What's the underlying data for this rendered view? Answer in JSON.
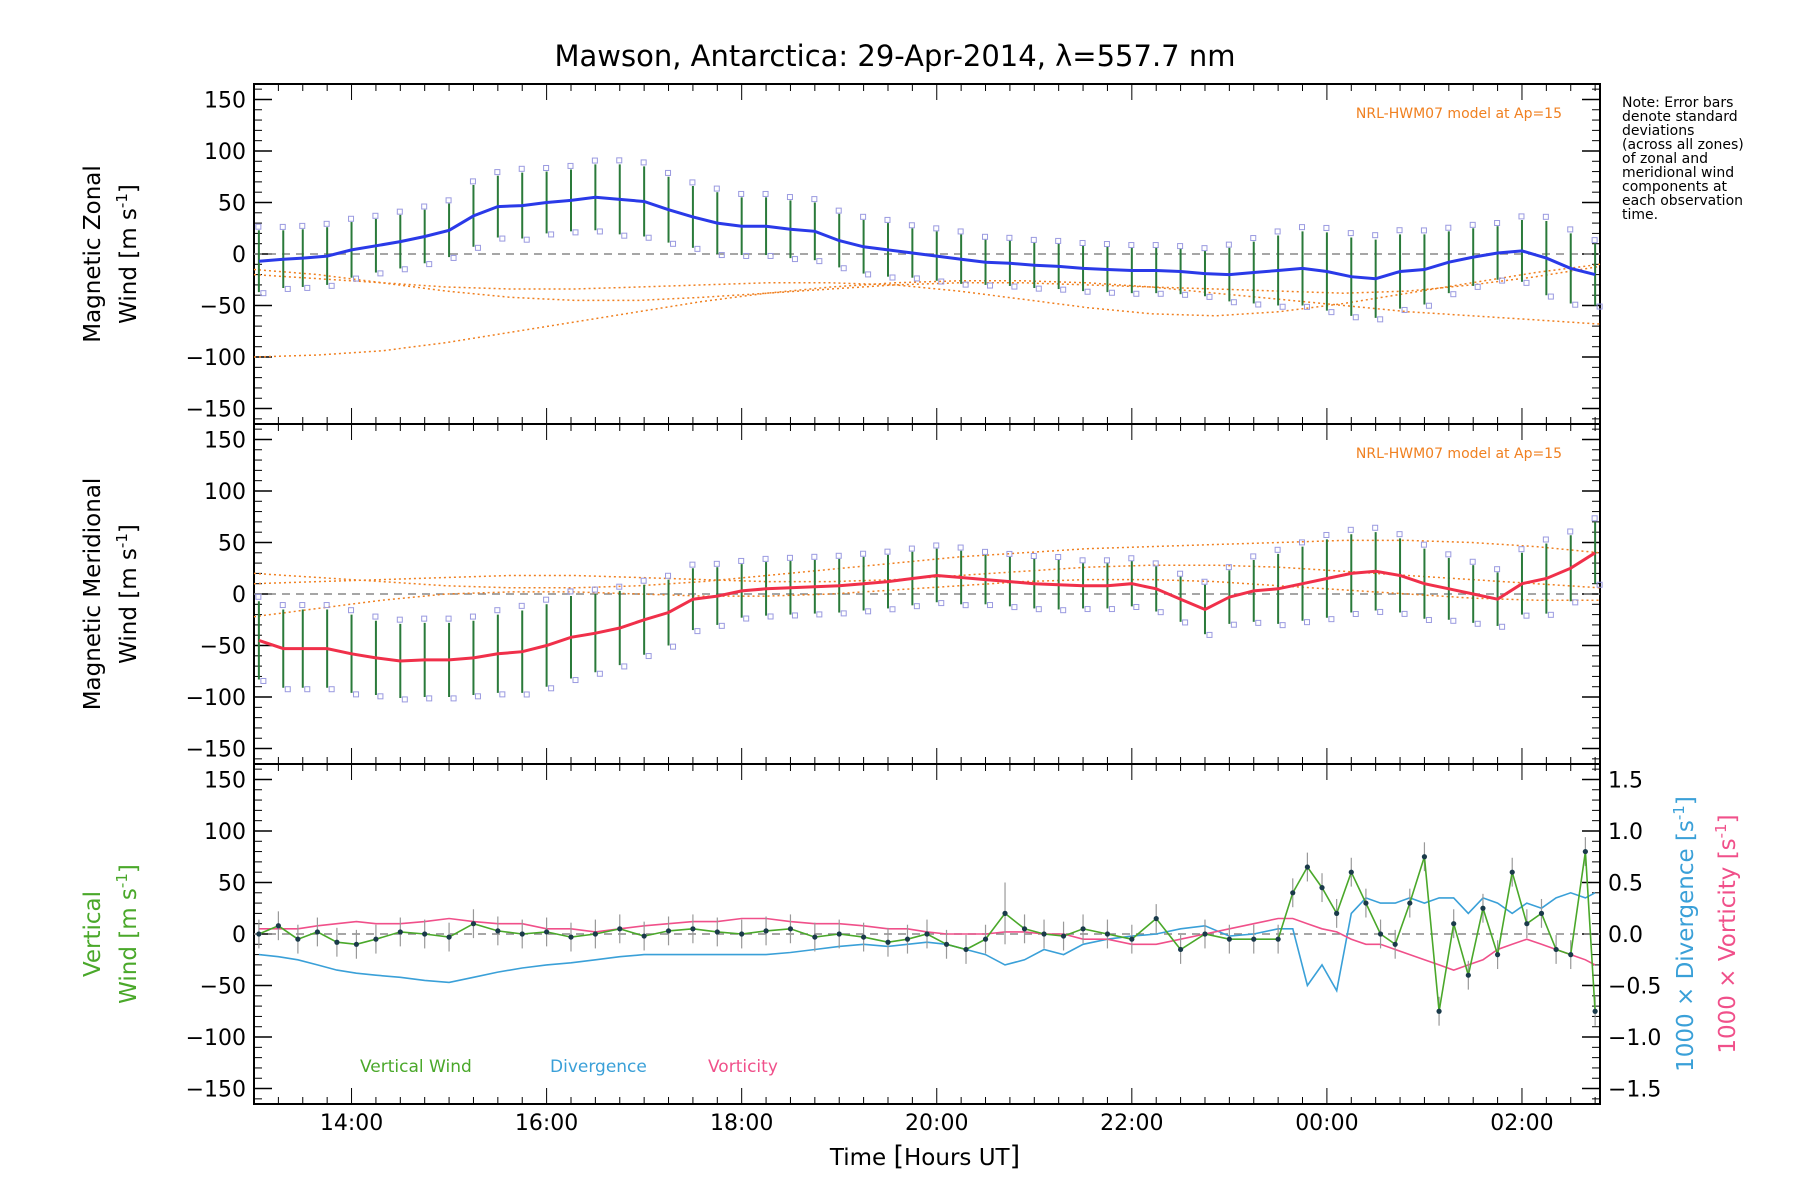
{
  "title": "Mawson, Antarctica: 29-Apr-2014, λ=557.7 nm",
  "note": [
    "Note: Error bars",
    "denote standard",
    "deviations",
    "(across all zones)",
    "of zonal and",
    "meridional wind",
    "components at",
    "each observation",
    "time."
  ],
  "model_label": "NRL-HWM07 model at Ap=15",
  "colors": {
    "zonal": "#2a3ae8",
    "zonal_light": "#3a9ee8",
    "meridional": "#f0304a",
    "vertical": "#4aa82a",
    "divergence": "#3aa0d8",
    "vorticity": "#f0508a",
    "model": "#f08020",
    "scatter": "#9a9ae0"
  },
  "chart_data": [
    {
      "type": "line",
      "name": "zonal",
      "ylabel_line1": "Magnetic Zonal",
      "ylabel_line2": "Wind [m s",
      "ylabel_sup": "-1",
      "ylabel_close": "]",
      "ylim": [
        -165,
        165
      ],
      "yticks": [
        "150",
        "100",
        "50",
        "0",
        "−50",
        "−100",
        "−150"
      ],
      "x": [
        13.05,
        13.3,
        13.5,
        13.75,
        14.0,
        14.25,
        14.5,
        14.75,
        15.0,
        15.25,
        15.5,
        15.75,
        16.0,
        16.25,
        16.5,
        16.75,
        17.0,
        17.25,
        17.5,
        17.75,
        18.0,
        18.25,
        18.5,
        18.75,
        19.0,
        19.25,
        19.5,
        19.75,
        20.0,
        20.25,
        20.5,
        20.75,
        21.0,
        21.25,
        21.5,
        21.75,
        22.0,
        22.25,
        22.5,
        22.75,
        23.0,
        23.25,
        23.5,
        23.75,
        24.0,
        24.25,
        24.5,
        24.75,
        25.0,
        25.25,
        25.5,
        25.75,
        26.0,
        26.25,
        26.5,
        26.75
      ],
      "y": [
        -7,
        -5,
        -4,
        -2,
        4,
        8,
        12,
        17,
        23,
        37,
        46,
        47,
        50,
        52,
        55,
        53,
        51,
        43,
        36,
        30,
        27,
        27,
        24,
        22,
        13,
        7,
        4,
        1,
        -2,
        -5,
        -8,
        -9,
        -11,
        -12,
        -14,
        -15,
        -16,
        -16,
        -17,
        -19,
        -20,
        -18,
        -16,
        -14,
        -17,
        -22,
        -24,
        -17,
        -15,
        -8,
        -3,
        1,
        3,
        -4,
        -14,
        -20
      ],
      "err": [
        30,
        28,
        28,
        28,
        27,
        26,
        26,
        26,
        26,
        30,
        30,
        32,
        30,
        30,
        32,
        34,
        34,
        32,
        30,
        30,
        28,
        28,
        28,
        28,
        26,
        26,
        26,
        24,
        24,
        24,
        22,
        22,
        22,
        22,
        22,
        22,
        22,
        22,
        22,
        22,
        26,
        30,
        34,
        36,
        38,
        38,
        38,
        36,
        34,
        30,
        28,
        26,
        30,
        36,
        34,
        30
      ]
    },
    {
      "type": "line",
      "name": "meridional",
      "ylabel_line1": "Magnetic Meridional",
      "ylabel_line2": "Wind [m s",
      "ylabel_sup": "-1",
      "ylabel_close": "]",
      "ylim": [
        -165,
        165
      ],
      "yticks": [
        "150",
        "100",
        "50",
        "0",
        "−50",
        "−100",
        "−150"
      ],
      "x": [
        13.05,
        13.3,
        13.5,
        13.75,
        14.0,
        14.25,
        14.5,
        14.75,
        15.0,
        15.25,
        15.5,
        15.75,
        16.0,
        16.25,
        16.5,
        16.75,
        17.0,
        17.25,
        17.5,
        17.75,
        18.0,
        18.25,
        18.5,
        18.75,
        19.0,
        19.25,
        19.5,
        19.75,
        20.0,
        20.25,
        20.5,
        20.75,
        21.0,
        21.25,
        21.5,
        21.75,
        22.0,
        22.25,
        22.5,
        22.75,
        23.0,
        23.25,
        23.5,
        23.75,
        24.0,
        24.25,
        24.5,
        24.75,
        25.0,
        25.25,
        25.5,
        25.75,
        26.0,
        26.25,
        26.5,
        26.75
      ],
      "y": [
        -45,
        -53,
        -53,
        -53,
        -58,
        -62,
        -65,
        -64,
        -64,
        -62,
        -58,
        -56,
        -50,
        -42,
        -38,
        -33,
        -25,
        -18,
        -5,
        -2,
        3,
        5,
        6,
        7,
        8,
        10,
        12,
        15,
        18,
        16,
        14,
        12,
        10,
        9,
        8,
        8,
        10,
        5,
        -5,
        -15,
        -3,
        3,
        5,
        10,
        15,
        20,
        22,
        18,
        10,
        5,
        0,
        -5,
        10,
        15,
        25,
        40
      ],
      "err": [
        38,
        38,
        38,
        38,
        38,
        36,
        36,
        36,
        36,
        36,
        38,
        40,
        40,
        40,
        38,
        36,
        34,
        32,
        30,
        28,
        26,
        26,
        26,
        26,
        26,
        26,
        26,
        26,
        26,
        26,
        24,
        24,
        24,
        24,
        22,
        22,
        22,
        22,
        22,
        24,
        26,
        30,
        34,
        36,
        38,
        38,
        38,
        36,
        34,
        30,
        28,
        26,
        30,
        34,
        32,
        30
      ]
    },
    {
      "type": "line",
      "name": "vertical",
      "ylabel_line1": "Vertical",
      "ylabel_line2": "Wind [m s",
      "ylabel_sup": "-1",
      "ylabel_close": "]",
      "ylim": [
        -165,
        165
      ],
      "yticks": [
        "150",
        "100",
        "50",
        "0",
        "−50",
        "−100",
        "−150"
      ],
      "y2label_line1": "1000 × Divergence [s",
      "y2label_line2": "1000 × Vorticity [s",
      "y2label_sup": "-1",
      "y2label_close": "]",
      "y2lim": [
        -1.65,
        1.65
      ],
      "y2ticks": [
        "1.5",
        "1.0",
        "0.5",
        "0.0",
        "−0.5",
        "−1.0",
        "−1.5"
      ],
      "x": [
        13.05,
        13.25,
        13.45,
        13.65,
        13.85,
        14.05,
        14.25,
        14.5,
        14.75,
        15.0,
        15.25,
        15.5,
        15.75,
        16.0,
        16.25,
        16.5,
        16.75,
        17.0,
        17.25,
        17.5,
        17.75,
        18.0,
        18.25,
        18.5,
        18.75,
        19.0,
        19.25,
        19.5,
        19.7,
        19.9,
        20.1,
        20.3,
        20.5,
        20.7,
        20.9,
        21.1,
        21.3,
        21.5,
        21.75,
        22.0,
        22.25,
        22.5,
        22.75,
        23.0,
        23.25,
        23.5,
        23.65,
        23.8,
        23.95,
        24.1,
        24.25,
        24.4,
        24.55,
        24.7,
        24.85,
        25.0,
        25.15,
        25.3,
        25.45,
        25.6,
        25.75,
        25.9,
        26.05,
        26.2,
        26.35,
        26.5,
        26.65,
        26.75
      ],
      "y": [
        0,
        8,
        -5,
        2,
        -8,
        -10,
        -5,
        2,
        0,
        -3,
        10,
        3,
        0,
        2,
        -3,
        0,
        5,
        -2,
        3,
        5,
        2,
        0,
        3,
        5,
        -3,
        0,
        -3,
        -8,
        -5,
        0,
        -10,
        -15,
        -5,
        20,
        5,
        0,
        -2,
        5,
        0,
        -5,
        15,
        -15,
        0,
        -5,
        -5,
        -5,
        40,
        65,
        45,
        20,
        60,
        30,
        0,
        -10,
        30,
        75,
        -75,
        10,
        -40,
        25,
        -20,
        60,
        10,
        20,
        -15,
        -20,
        80,
        -75
      ],
      "err_vertical": [
        14,
        14,
        14,
        14,
        14,
        14,
        14,
        14,
        14,
        14,
        14,
        14,
        14,
        14,
        14,
        14,
        14,
        14,
        14,
        14,
        14,
        14,
        14,
        14,
        14,
        14,
        14,
        14,
        14,
        14,
        14,
        14,
        14,
        30,
        14,
        14,
        14,
        14,
        14,
        14,
        14,
        14,
        14,
        14,
        14,
        14,
        14,
        14,
        14,
        14,
        14,
        14,
        14,
        14,
        14,
        14,
        14,
        14,
        14,
        14,
        14,
        14,
        14,
        14,
        14,
        14,
        14,
        14
      ],
      "divergence": [
        -0.2,
        -0.22,
        -0.25,
        -0.3,
        -0.35,
        -0.38,
        -0.4,
        -0.42,
        -0.45,
        -0.47,
        -0.42,
        -0.37,
        -0.33,
        -0.3,
        -0.28,
        -0.25,
        -0.22,
        -0.2,
        -0.2,
        -0.2,
        -0.2,
        -0.2,
        -0.2,
        -0.18,
        -0.15,
        -0.12,
        -0.1,
        -0.12,
        -0.1,
        -0.08,
        -0.1,
        -0.15,
        -0.2,
        -0.3,
        -0.25,
        -0.15,
        -0.2,
        -0.1,
        -0.05,
        -0.02,
        0.0,
        0.05,
        0.08,
        -0.02,
        0.0,
        0.05,
        0.05,
        -0.5,
        -0.3,
        -0.55,
        0.2,
        0.35,
        0.3,
        0.3,
        0.35,
        0.3,
        0.35,
        0.35,
        0.2,
        0.35,
        0.3,
        0.2,
        0.3,
        0.25,
        0.35,
        0.4,
        0.35,
        0.4
      ],
      "vorticity": [
        0.05,
        0.05,
        0.05,
        0.08,
        0.1,
        0.12,
        0.1,
        0.1,
        0.12,
        0.15,
        0.12,
        0.1,
        0.1,
        0.05,
        0.05,
        0.02,
        0.05,
        0.08,
        0.1,
        0.12,
        0.12,
        0.15,
        0.15,
        0.12,
        0.1,
        0.1,
        0.08,
        0.05,
        0.05,
        0.02,
        0.0,
        0.0,
        0.0,
        0.02,
        0.02,
        0.0,
        0.0,
        -0.05,
        -0.05,
        -0.1,
        -0.1,
        -0.05,
        0.0,
        0.05,
        0.1,
        0.15,
        0.15,
        0.1,
        0.05,
        0.02,
        -0.05,
        -0.1,
        -0.1,
        -0.15,
        -0.2,
        -0.25,
        -0.3,
        -0.35,
        -0.3,
        -0.25,
        -0.15,
        -0.1,
        -0.05,
        -0.1,
        -0.15,
        -0.2,
        -0.25,
        -0.3
      ]
    }
  ],
  "x_axis": {
    "xlim": [
      13.0,
      26.8
    ],
    "ticks": [
      14,
      16,
      18,
      20,
      22,
      24,
      26
    ],
    "tick_labels": [
      "14:00",
      "16:00",
      "18:00",
      "20:00",
      "22:00",
      "00:00",
      "02:00"
    ],
    "label_pre": "Time ",
    "label_bracket_open": "[",
    "label_inner": "Hours UT",
    "label_bracket_close": "]"
  },
  "legend": [
    "Vertical Wind",
    "Divergence",
    "Vorticity"
  ]
}
